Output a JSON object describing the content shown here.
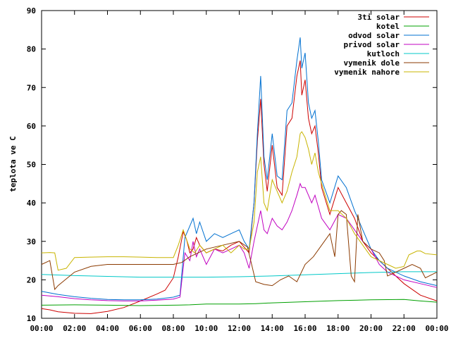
{
  "chart_data": {
    "type": "line",
    "xlabel": "",
    "ylabel": "teplota ve C",
    "ylim": [
      10,
      90
    ],
    "xlim": [
      0,
      24
    ],
    "grid": false,
    "legend_position": "top-right",
    "x_tick_labels": [
      "00:00",
      "02:00",
      "04:00",
      "06:00",
      "08:00",
      "10:00",
      "12:00",
      "14:00",
      "16:00",
      "18:00",
      "20:00",
      "22:00",
      "00:00"
    ],
    "y_tick_labels": [
      "10",
      "20",
      "30",
      "40",
      "50",
      "60",
      "70",
      "80",
      "90"
    ],
    "series": [
      {
        "name": "3ti solar",
        "color": "#cc0000",
        "x": [
          0,
          0.5,
          1,
          2,
          3,
          4,
          5,
          6,
          7,
          7.5,
          8,
          8.3,
          8.6,
          8.8,
          9,
          9.2,
          9.4,
          9.6,
          10,
          10.5,
          11,
          11.5,
          12,
          12.3,
          12.6,
          12.9,
          13.1,
          13.3,
          13.5,
          13.7,
          14,
          14.3,
          14.6,
          14.9,
          15.2,
          15.5,
          15.7,
          15.8,
          16,
          16.2,
          16.4,
          16.6,
          16.8,
          17,
          17.5,
          18,
          18.5,
          19,
          19.5,
          20,
          20.5,
          21,
          22,
          23,
          24
        ],
        "y": [
          12.5,
          12.2,
          11.7,
          11.3,
          11.2,
          11.8,
          12.8,
          14.5,
          16.3,
          17.3,
          20.5,
          26,
          32.5,
          30.5,
          27,
          28,
          31,
          29,
          27,
          28,
          27.5,
          29,
          30,
          28.5,
          27,
          40,
          56,
          67,
          50,
          43,
          55,
          44,
          42,
          60,
          62,
          73,
          77,
          68,
          72,
          62,
          58,
          60,
          53,
          44,
          37,
          44,
          40,
          36,
          30,
          27,
          25,
          23,
          19,
          16,
          14.5
        ]
      },
      {
        "name": "kotel",
        "color": "#00a000",
        "x": [
          0,
          2,
          4,
          6,
          8,
          9,
          10,
          12,
          13,
          14,
          16,
          18,
          20,
          22,
          23,
          24
        ],
        "y": [
          13.4,
          13.5,
          13.4,
          13.3,
          13.4,
          13.5,
          13.7,
          13.7,
          13.8,
          14,
          14.3,
          14.6,
          14.8,
          14.9,
          14.5,
          14.2
        ]
      },
      {
        "name": "odvod solar",
        "color": "#0070d0",
        "x": [
          0,
          1,
          2,
          3,
          4,
          5,
          6,
          7,
          8,
          8.4,
          8.7,
          9,
          9.2,
          9.4,
          9.6,
          10,
          10.5,
          11,
          11.5,
          12,
          12.3,
          12.6,
          12.9,
          13.1,
          13.3,
          13.5,
          13.7,
          14,
          14.3,
          14.6,
          14.9,
          15.2,
          15.5,
          15.7,
          15.8,
          16,
          16.2,
          16.4,
          16.6,
          16.8,
          17,
          17.5,
          18,
          18.5,
          19,
          19.5,
          20,
          20.5,
          21,
          22,
          23,
          24
        ],
        "y": [
          17,
          16.2,
          15.6,
          15.2,
          14.9,
          14.8,
          14.8,
          15,
          15.5,
          16,
          31,
          34,
          36,
          32,
          35,
          30,
          32,
          31,
          32,
          33,
          30,
          28,
          40,
          58,
          73,
          52,
          46,
          58,
          47,
          46,
          64,
          66,
          77,
          83,
          75,
          79,
          66,
          62,
          64,
          56,
          46,
          40,
          47,
          44,
          38,
          33,
          28,
          25,
          23,
          21,
          19.5,
          18.5
        ]
      },
      {
        "name": "privod solar",
        "color": "#c000c0",
        "x": [
          0,
          1,
          2,
          3,
          4,
          5,
          6,
          7,
          8,
          8.4,
          8.7,
          9,
          9.2,
          9.4,
          9.6,
          10,
          10.5,
          11,
          11.5,
          12,
          12.3,
          12.6,
          12.9,
          13.1,
          13.3,
          13.5,
          13.7,
          14,
          14.3,
          14.6,
          14.9,
          15.2,
          15.5,
          15.7,
          15.8,
          16,
          16.2,
          16.4,
          16.6,
          16.8,
          17,
          17.5,
          18,
          18.5,
          19,
          19.5,
          20,
          20.5,
          21,
          22,
          23,
          24
        ],
        "y": [
          16,
          15.6,
          15.1,
          14.8,
          14.6,
          14.5,
          14.5,
          14.7,
          15,
          15.5,
          27,
          25,
          30,
          26,
          28,
          24,
          28,
          27,
          28,
          29,
          27,
          23,
          30,
          34,
          38,
          33,
          32,
          36,
          34,
          33,
          35,
          38,
          42,
          45,
          44,
          44,
          42,
          40,
          42,
          39,
          36,
          33,
          37,
          36,
          33,
          30,
          28,
          24,
          22,
          20,
          19,
          18
        ]
      },
      {
        "name": "kutloch",
        "color": "#00c8c8",
        "x": [
          0,
          2,
          4,
          6,
          8,
          10,
          12,
          14,
          16,
          18,
          20,
          22,
          24
        ],
        "y": [
          21.4,
          21.1,
          20.9,
          20.7,
          20.7,
          20.7,
          20.8,
          21,
          21.3,
          21.6,
          21.9,
          22.1,
          22.1
        ]
      },
      {
        "name": "vymenik dole",
        "color": "#8b3a00",
        "x": [
          0,
          0.5,
          0.8,
          1,
          2,
          3,
          4,
          5,
          6,
          7,
          8,
          8.5,
          9,
          10,
          11,
          12,
          12.5,
          13,
          13.5,
          14,
          14.5,
          15,
          15.5,
          16,
          16.5,
          17,
          17.5,
          17.8,
          18,
          18.2,
          18.5,
          18.8,
          19,
          19.2,
          19.5,
          20,
          20.5,
          20.8,
          21,
          21.5,
          22,
          22.5,
          23,
          23.3,
          24
        ],
        "y": [
          24,
          25,
          17.5,
          18.5,
          22,
          23.5,
          24,
          24,
          24,
          24,
          24,
          24.5,
          26,
          28,
          29,
          30,
          28.5,
          19.5,
          18.8,
          18.5,
          20,
          21,
          19.5,
          24,
          26,
          29,
          32,
          26,
          37,
          38,
          37,
          21,
          19.5,
          37,
          30,
          28,
          27,
          25,
          21,
          22,
          23,
          24,
          23,
          20.5,
          22
        ]
      },
      {
        "name": "vymenik nahore",
        "color": "#c8b400",
        "x": [
          0,
          0.5,
          0.8,
          1,
          1.5,
          2,
          3,
          4,
          5,
          6,
          7,
          8,
          8.3,
          8.6,
          9,
          9.3,
          9.6,
          10,
          10.5,
          11,
          11.5,
          12,
          12.3,
          12.6,
          12.9,
          13.1,
          13.3,
          13.5,
          13.7,
          14,
          14.3,
          14.6,
          14.9,
          15.2,
          15.5,
          15.7,
          15.8,
          16,
          16.2,
          16.4,
          16.6,
          16.8,
          17,
          17.5,
          18,
          18.5,
          19,
          19.5,
          20,
          20.5,
          21,
          21.5,
          22,
          22.3,
          22.8,
          23,
          23.3,
          24
        ],
        "y": [
          27,
          27.1,
          27,
          22.5,
          23,
          25.8,
          25.9,
          26,
          26,
          25.9,
          25.8,
          25.8,
          29,
          33,
          28,
          27,
          29,
          27,
          28,
          29,
          27,
          29,
          28,
          28,
          35,
          48,
          52,
          40,
          38,
          46,
          43,
          40,
          43,
          48,
          52,
          58,
          58.5,
          57,
          54,
          50,
          53,
          48,
          45,
          38,
          38,
          36,
          32,
          29,
          26,
          25,
          24,
          23,
          23.5,
          26.5,
          27.5,
          27.5,
          26.8,
          26.5
        ]
      }
    ]
  }
}
